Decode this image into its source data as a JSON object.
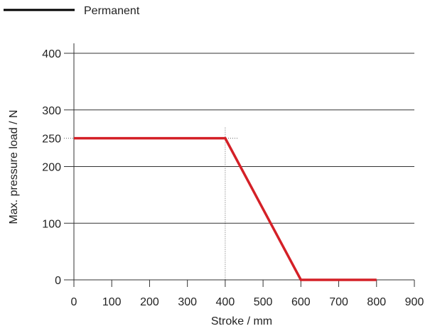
{
  "chart_data": {
    "type": "line",
    "title": "",
    "xlabel": "Stroke / mm",
    "ylabel": "Max. pressure load / N",
    "xlim": [
      0,
      900
    ],
    "ylim": [
      0,
      400
    ],
    "x_ticks": [
      0,
      100,
      200,
      300,
      400,
      500,
      600,
      700,
      800,
      900
    ],
    "y_ticks": [
      0,
      100,
      200,
      250,
      300,
      400
    ],
    "y_gridlines": [
      0,
      100,
      200,
      300,
      400
    ],
    "grid": true,
    "legend_position": "top-left",
    "legend_entries": [
      {
        "name": "Permanent",
        "color": "#000000"
      }
    ],
    "series": [
      {
        "name": "",
        "color": "#d42027",
        "points": [
          [
            0,
            250
          ],
          [
            400,
            250
          ],
          [
            600,
            0
          ],
          [
            800,
            0
          ]
        ]
      }
    ],
    "reference_lines": {
      "vertical_x": 400,
      "horizontal_y": 250,
      "style": "dotted"
    }
  }
}
